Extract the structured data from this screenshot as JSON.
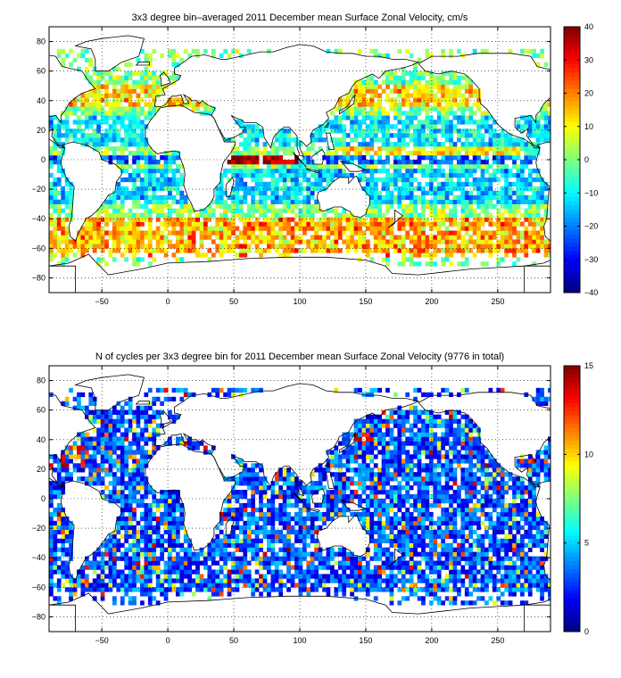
{
  "top": {
    "title": "3x3 degree bin–averaged 2011 December mean Surface Zonal Velocity, cm/s",
    "colorbar_ticks": [
      "40",
      "30",
      "20",
      "10",
      "0",
      "−10",
      "−20",
      "−30",
      "−40"
    ]
  },
  "bottom": {
    "title": "N of cycles per 3x3 degree bin for 2011 December mean Surface Zonal Velocity (9776 in total)",
    "colorbar_ticks": [
      "15",
      "10",
      "5",
      "0"
    ]
  },
  "chart_data": [
    {
      "type": "heatmap",
      "title": "3x3 degree bin–averaged 2011 December mean Surface Zonal Velocity, cm/s",
      "x_ticks": [
        -50,
        0,
        50,
        100,
        150,
        200,
        250
      ],
      "y_ticks": [
        80,
        60,
        40,
        20,
        0,
        -20,
        -40,
        -60,
        -80
      ],
      "xlim": [
        -90,
        290
      ],
      "ylim": [
        -90,
        90
      ],
      "colorbar": {
        "range": [
          -40,
          40
        ],
        "ticks": [
          40,
          30,
          20,
          10,
          0,
          -10,
          -20,
          -30,
          -40
        ]
      },
      "grid": true,
      "bin_size_deg": 3
    },
    {
      "type": "heatmap",
      "title": "N of cycles per 3x3 degree bin for 2011 December mean Surface Zonal Velocity (9776 in total)",
      "x_ticks": [
        -50,
        0,
        50,
        100,
        150,
        200,
        250
      ],
      "y_ticks": [
        80,
        60,
        40,
        20,
        0,
        -20,
        -40,
        -60,
        -80
      ],
      "xlim": [
        -90,
        290
      ],
      "ylim": [
        -90,
        90
      ],
      "colorbar": {
        "range": [
          0,
          15
        ],
        "ticks": [
          15,
          10,
          5,
          0
        ]
      },
      "grid": true,
      "bin_size_deg": 3,
      "total_cycles": 9776
    }
  ]
}
